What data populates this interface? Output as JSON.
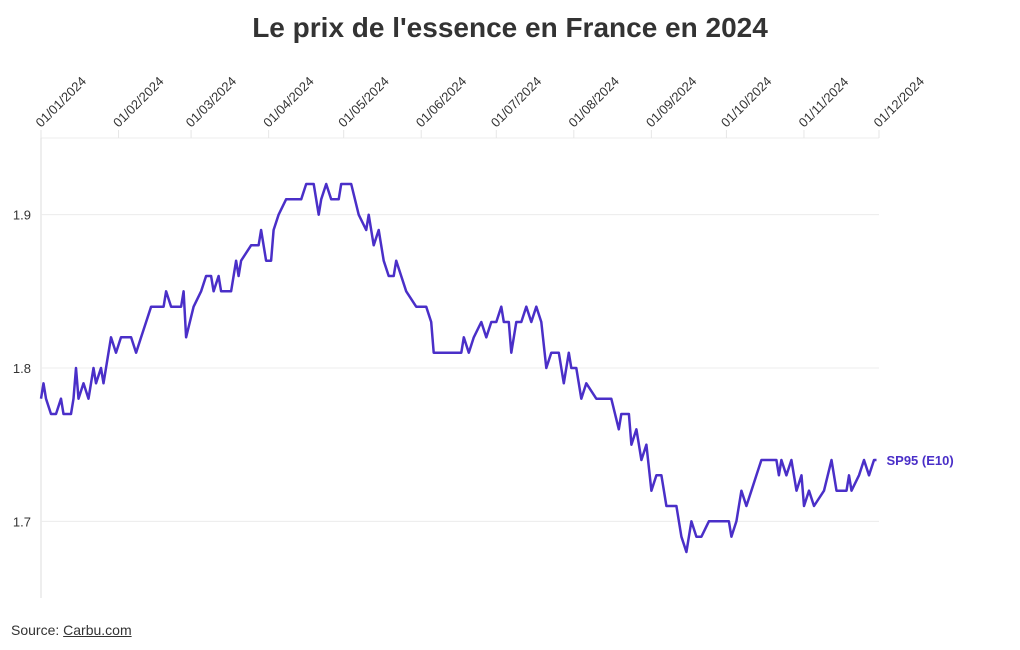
{
  "chart_data": {
    "type": "line",
    "title": "Le prix de l'essence en France en 2024",
    "source_label": "Source:",
    "source_link": "Carbu.com",
    "x": [
      "01/01/2024",
      "02/01/2024",
      "03/01/2024",
      "05/01/2024",
      "07/01/2024",
      "09/01/2024",
      "10/01/2024",
      "13/01/2024",
      "14/01/2024",
      "15/01/2024",
      "16/01/2024",
      "18/01/2024",
      "20/01/2024",
      "22/01/2024",
      "23/01/2024",
      "25/01/2024",
      "26/01/2024",
      "29/01/2024",
      "31/01/2024",
      "02/02/2024",
      "06/02/2024",
      "08/02/2024",
      "10/02/2024",
      "12/02/2024",
      "14/02/2024",
      "19/02/2024",
      "20/02/2024",
      "22/02/2024",
      "26/02/2024",
      "27/02/2024",
      "28/02/2024",
      "02/03/2024",
      "05/03/2024",
      "07/03/2024",
      "09/03/2024",
      "10/03/2024",
      "12/03/2024",
      "13/03/2024",
      "17/03/2024",
      "19/03/2024",
      "20/03/2024",
      "21/03/2024",
      "25/03/2024",
      "28/03/2024",
      "29/03/2024",
      "31/03/2024",
      "02/04/2024",
      "03/04/2024",
      "05/04/2024",
      "08/04/2024",
      "14/04/2024",
      "16/04/2024",
      "19/04/2024",
      "21/04/2024",
      "22/04/2024",
      "24/04/2024",
      "26/04/2024",
      "29/04/2024",
      "30/04/2024",
      "04/05/2024",
      "07/05/2024",
      "10/05/2024",
      "11/05/2024",
      "13/05/2024",
      "15/05/2024",
      "17/05/2024",
      "19/05/2024",
      "21/05/2024",
      "22/05/2024",
      "24/05/2024",
      "26/05/2024",
      "30/05/2024",
      "03/06/2024",
      "05/06/2024",
      "06/06/2024",
      "17/06/2024",
      "18/06/2024",
      "20/06/2024",
      "22/06/2024",
      "25/06/2024",
      "27/06/2024",
      "29/06/2024",
      "01/07/2024",
      "03/07/2024",
      "04/07/2024",
      "06/07/2024",
      "07/07/2024",
      "09/07/2024",
      "11/07/2024",
      "13/07/2024",
      "15/07/2024",
      "17/07/2024",
      "19/07/2024",
      "21/07/2024",
      "23/07/2024",
      "26/07/2024",
      "28/07/2024",
      "30/07/2024",
      "31/07/2024",
      "02/08/2024",
      "04/08/2024",
      "06/08/2024",
      "10/08/2024",
      "16/08/2024",
      "19/08/2024",
      "20/08/2024",
      "23/08/2024",
      "24/08/2024",
      "26/08/2024",
      "28/08/2024",
      "30/08/2024",
      "01/09/2024",
      "03/09/2024",
      "05/09/2024",
      "07/09/2024",
      "11/09/2024",
      "13/09/2024",
      "15/09/2024",
      "17/09/2024",
      "19/09/2024",
      "21/09/2024",
      "24/09/2024",
      "02/10/2024",
      "03/10/2024",
      "05/10/2024",
      "07/10/2024",
      "09/10/2024",
      "11/10/2024",
      "13/10/2024",
      "15/10/2024",
      "21/10/2024",
      "22/10/2024",
      "23/10/2024",
      "25/10/2024",
      "27/10/2024",
      "29/10/2024",
      "31/10/2024",
      "01/11/2024",
      "03/11/2024",
      "05/11/2024",
      "09/11/2024",
      "12/11/2024",
      "14/11/2024",
      "18/11/2024",
      "19/11/2024",
      "20/11/2024",
      "23/11/2024",
      "25/11/2024",
      "27/11/2024",
      "29/11/2024",
      "30/11/2024"
    ],
    "series": [
      {
        "name": "SP95 (E10)",
        "color": "#4a2fc8",
        "values": [
          1.78,
          1.79,
          1.78,
          1.77,
          1.77,
          1.78,
          1.77,
          1.77,
          1.78,
          1.8,
          1.78,
          1.79,
          1.78,
          1.8,
          1.79,
          1.8,
          1.79,
          1.82,
          1.81,
          1.82,
          1.82,
          1.81,
          1.82,
          1.83,
          1.84,
          1.84,
          1.85,
          1.84,
          1.84,
          1.85,
          1.82,
          1.84,
          1.85,
          1.86,
          1.86,
          1.85,
          1.86,
          1.85,
          1.85,
          1.87,
          1.86,
          1.87,
          1.88,
          1.88,
          1.89,
          1.87,
          1.87,
          1.89,
          1.9,
          1.91,
          1.91,
          1.92,
          1.92,
          1.9,
          1.91,
          1.92,
          1.91,
          1.91,
          1.92,
          1.92,
          1.9,
          1.89,
          1.9,
          1.88,
          1.89,
          1.87,
          1.86,
          1.86,
          1.87,
          1.86,
          1.85,
          1.84,
          1.84,
          1.83,
          1.81,
          1.81,
          1.82,
          1.81,
          1.82,
          1.83,
          1.82,
          1.83,
          1.83,
          1.84,
          1.83,
          1.83,
          1.81,
          1.83,
          1.83,
          1.84,
          1.83,
          1.84,
          1.83,
          1.8,
          1.81,
          1.81,
          1.79,
          1.81,
          1.8,
          1.8,
          1.78,
          1.79,
          1.78,
          1.78,
          1.76,
          1.77,
          1.77,
          1.75,
          1.76,
          1.74,
          1.75,
          1.72,
          1.73,
          1.73,
          1.71,
          1.71,
          1.69,
          1.68,
          1.7,
          1.69,
          1.69,
          1.7,
          1.7,
          1.69,
          1.7,
          1.72,
          1.71,
          1.72,
          1.73,
          1.74,
          1.74,
          1.73,
          1.74,
          1.73,
          1.74,
          1.72,
          1.73,
          1.71,
          1.72,
          1.71,
          1.72,
          1.74,
          1.72,
          1.72,
          1.73,
          1.72,
          1.73,
          1.74,
          1.73,
          1.74,
          1.74
        ]
      }
    ],
    "xlim": [
      "01/01/2024",
      "01/12/2024"
    ],
    "xticks": [
      "01/01/2024",
      "01/02/2024",
      "01/03/2024",
      "01/04/2024",
      "01/05/2024",
      "01/06/2024",
      "01/07/2024",
      "01/08/2024",
      "01/09/2024",
      "01/10/2024",
      "01/11/2024",
      "01/12/2024"
    ],
    "ylim": [
      1.65,
      1.95
    ],
    "yticks": [
      1.7,
      1.8,
      1.9
    ],
    "grid": true
  }
}
